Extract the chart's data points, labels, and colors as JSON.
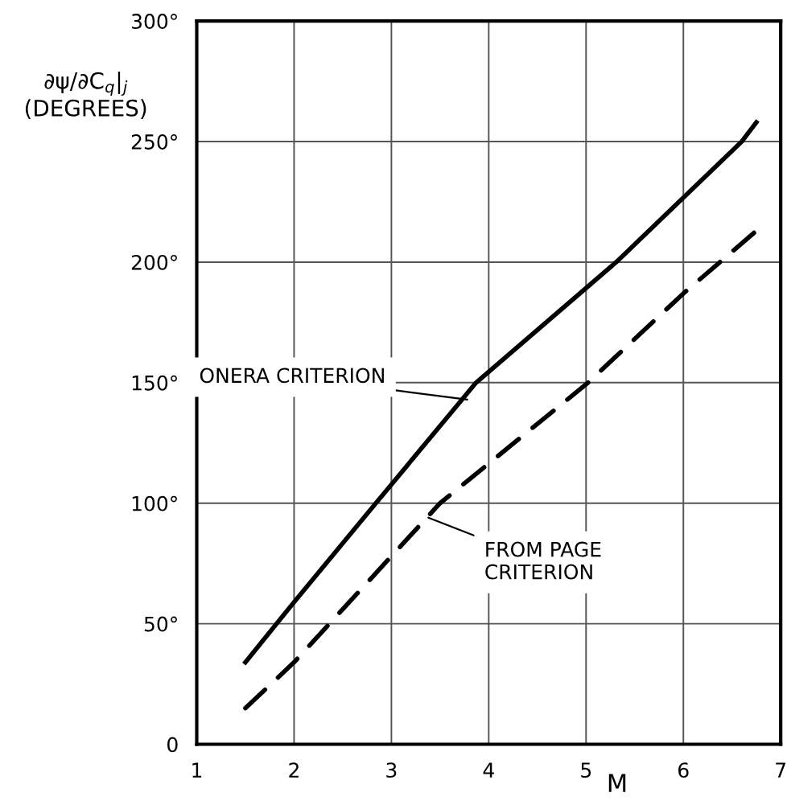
{
  "chart_data": {
    "type": "line",
    "xlabel": "M",
    "ylabel": "∂ψ/∂C$_{q}$|$_{j}$\n(DEGREES)",
    "xlim": [
      1,
      7
    ],
    "ylim": [
      0,
      300
    ],
    "xticks": [
      1,
      2,
      3,
      4,
      5,
      6,
      7
    ],
    "yticks": [
      0,
      {
        "value": 50,
        "label": "50°"
      },
      {
        "value": 100,
        "label": "100°"
      },
      {
        "value": 150,
        "label": "150°"
      },
      {
        "value": 200,
        "label": "200°"
      },
      {
        "value": 250,
        "label": "250°"
      },
      {
        "value": 300,
        "label": "300°"
      }
    ],
    "grid": true,
    "legend": false,
    "series": [
      {
        "color": "#000000",
        "line_style": "solid",
        "x": [
          1.5,
          2,
          2.84,
          3.87,
          5.31,
          6.6,
          6.75
        ],
        "values": [
          34,
          59,
          100,
          150,
          200,
          250,
          258
        ]
      },
      {
        "color": "#000000",
        "line_style": "dashed",
        "x": [
          1.5,
          2,
          3.5,
          5.02,
          6,
          6.75
        ],
        "values": [
          15,
          34,
          100,
          150,
          187,
          213
        ]
      }
    ],
    "annotations": [
      {
        "text": "ONERA CRITERION",
        "x": 3.78,
        "y": 143
      },
      {
        "text": "FROM PAGE\nCRITERION",
        "x": 3.38,
        "y": 94
      }
    ]
  }
}
